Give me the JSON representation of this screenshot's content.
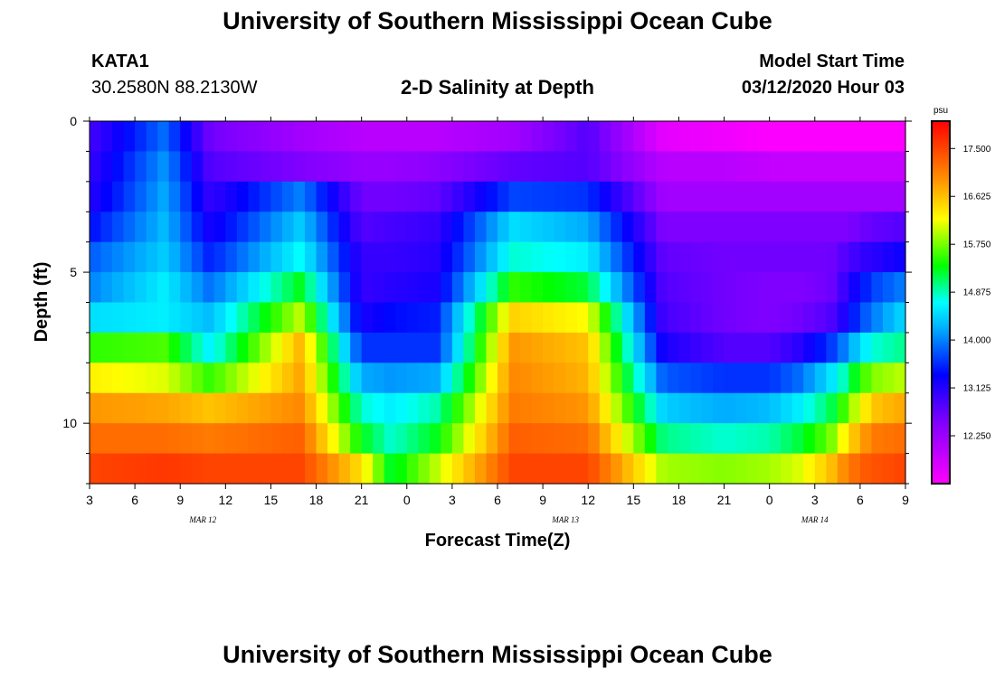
{
  "header": {
    "title": "University of Southern Mississippi Ocean Cube",
    "station": "KATA1",
    "coords": "30.2580N 88.2130W",
    "subtitle": "2-D Salinity at Depth",
    "model_start_label": "Model Start Time",
    "model_start_value": "03/12/2020 Hour 03"
  },
  "footer": {
    "title": "University of Southern Mississippi Ocean Cube"
  },
  "chart_data": {
    "type": "heatmap",
    "title": "2-D Salinity at Depth",
    "xlabel": "Forecast Time(Z)",
    "ylabel": "Depth (ft)",
    "x_tick_labels": [
      "3",
      "6",
      "9",
      "12",
      "15",
      "18",
      "21",
      "0",
      "3",
      "6",
      "9",
      "12",
      "15",
      "18",
      "21",
      "0",
      "3",
      "6",
      "9"
    ],
    "date_labels": [
      {
        "label": "MAR 12",
        "tick_index": 2.5
      },
      {
        "label": "MAR 13",
        "tick_index": 10.5
      },
      {
        "label": "MAR 14",
        "tick_index": 16
      }
    ],
    "y_tick_labels": [
      "0",
      "5",
      "10"
    ],
    "y_tick_values": [
      0,
      5,
      10
    ],
    "ylim": [
      0,
      12
    ],
    "xlim_hours": [
      0,
      54
    ],
    "colorbar": {
      "unit": "psu",
      "min": 11.375,
      "max": 18.0,
      "tick_values": [
        17.5,
        16.625,
        15.75,
        14.875,
        14.0,
        13.125,
        12.25
      ],
      "tick_labels": [
        "17.500",
        "16.625",
        "15.750",
        "14.875",
        "14.000",
        "13.125",
        "12.250"
      ]
    },
    "profile_keypoints": {
      "time_hours": [
        0,
        5,
        8,
        14,
        18,
        20,
        23,
        28,
        33,
        38,
        42,
        45,
        47,
        49,
        50,
        51,
        52,
        54
      ],
      "depth_ft": [
        0.5,
        1.5,
        2.5,
        3.5,
        4.5,
        5.5,
        6.5,
        7.5,
        8.5,
        9.5,
        10.5,
        11.5
      ],
      "salinity_psu": [
        [
          12.9,
          13.9,
          12.6,
          12.2,
          12.0,
          12.0,
          12.0,
          12.2,
          12.8,
          11.6,
          11.5,
          11.4,
          11.4,
          11.4,
          11.4,
          11.4,
          11.4,
          11.4
        ],
        [
          13.0,
          14.1,
          12.8,
          12.5,
          12.3,
          12.3,
          12.4,
          12.7,
          12.8,
          12.0,
          12.0,
          11.9,
          11.9,
          11.9,
          11.9,
          11.9,
          11.9,
          11.9
        ],
        [
          13.1,
          14.2,
          13.0,
          14.0,
          12.6,
          12.6,
          12.7,
          13.7,
          13.6,
          12.2,
          12.2,
          12.2,
          12.2,
          12.2,
          12.2,
          12.2,
          12.2,
          12.2
        ],
        [
          13.4,
          14.3,
          13.2,
          14.4,
          12.8,
          12.9,
          13.0,
          14.5,
          14.2,
          12.5,
          12.5,
          12.5,
          12.5,
          12.5,
          12.5,
          12.6,
          12.7,
          12.8
        ],
        [
          13.8,
          14.4,
          13.5,
          14.7,
          13.0,
          13.0,
          13.1,
          14.8,
          14.6,
          12.7,
          12.6,
          12.6,
          12.6,
          12.6,
          12.8,
          13.0,
          13.1,
          13.3
        ],
        [
          14.0,
          14.6,
          13.9,
          15.3,
          13.0,
          13.1,
          13.2,
          15.5,
          15.2,
          12.8,
          12.6,
          12.5,
          12.5,
          12.6,
          13.0,
          13.4,
          13.7,
          14.0
        ],
        [
          14.5,
          14.6,
          14.3,
          16.0,
          13.2,
          13.4,
          13.5,
          16.5,
          16.2,
          12.9,
          12.6,
          12.5,
          12.6,
          12.8,
          13.2,
          13.7,
          14.0,
          14.5
        ],
        [
          15.5,
          15.6,
          14.6,
          16.7,
          13.6,
          13.6,
          13.6,
          16.9,
          16.6,
          13.2,
          12.8,
          12.8,
          13.1,
          13.6,
          14.0,
          14.5,
          14.8,
          15.0
        ],
        [
          16.3,
          16.1,
          15.5,
          16.8,
          14.2,
          14.1,
          14.2,
          17.0,
          16.7,
          13.8,
          13.6,
          13.6,
          13.9,
          14.5,
          14.9,
          15.5,
          15.8,
          16.0
        ],
        [
          16.9,
          16.8,
          16.6,
          17.0,
          14.8,
          14.6,
          14.9,
          17.1,
          16.9,
          14.4,
          14.2,
          14.3,
          14.6,
          15.1,
          15.6,
          16.2,
          16.6,
          16.8
        ],
        [
          17.2,
          17.2,
          17.1,
          17.3,
          15.3,
          14.8,
          15.3,
          17.3,
          17.2,
          15.0,
          14.8,
          14.9,
          15.2,
          15.7,
          16.3,
          16.8,
          17.1,
          17.2
        ],
        [
          17.5,
          17.6,
          17.5,
          17.5,
          16.4,
          15.2,
          16.0,
          17.5,
          17.5,
          15.9,
          15.8,
          15.9,
          16.1,
          16.6,
          17.0,
          17.3,
          17.4,
          17.5
        ]
      ]
    }
  }
}
